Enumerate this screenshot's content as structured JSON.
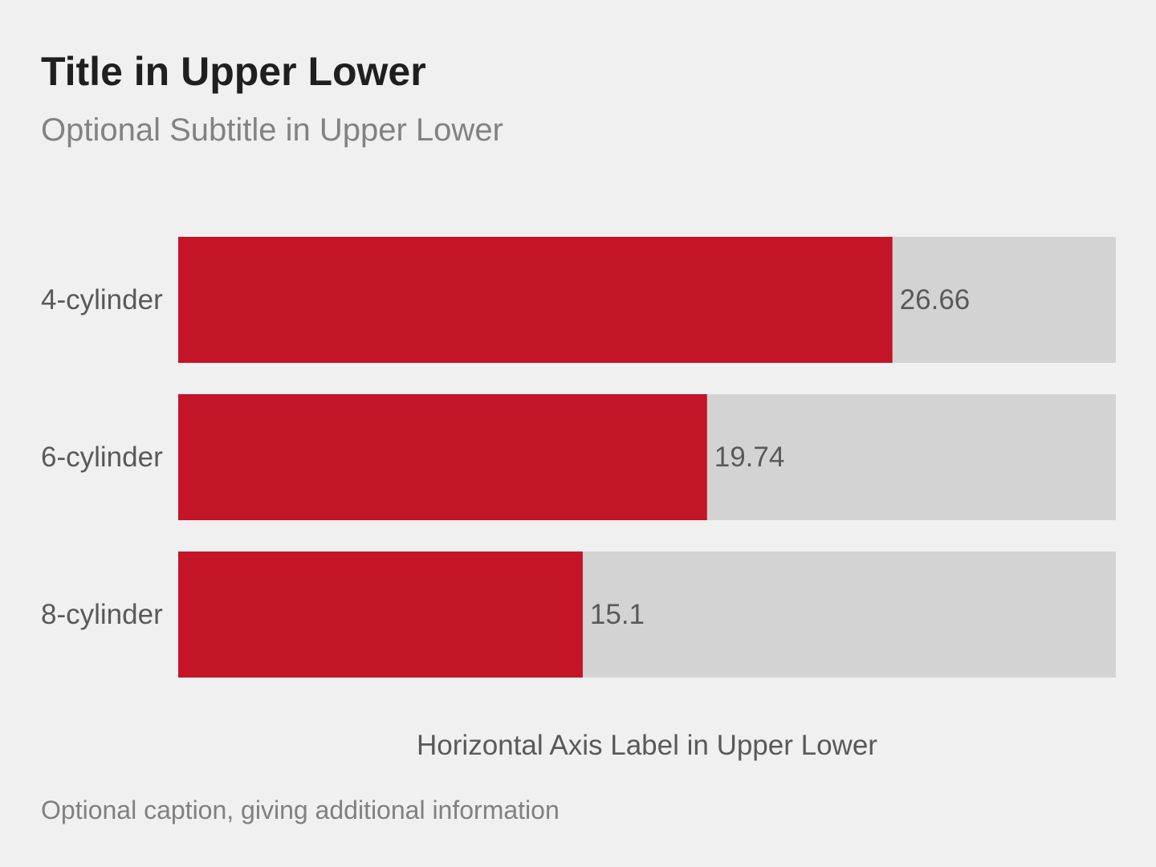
{
  "chart": {
    "title": "Title in Upper Lower",
    "subtitle": "Optional Subtitle in Upper Lower",
    "caption": "Optional caption, giving additional information"
  },
  "chart_data": {
    "type": "bar",
    "orientation": "horizontal",
    "title": "Title in Upper Lower",
    "subtitle": "Optional Subtitle in Upper Lower",
    "categories": [
      "4-cylinder",
      "6-cylinder",
      "8-cylinder"
    ],
    "values": [
      26.66,
      19.74,
      15.1
    ],
    "value_labels": [
      "26.66",
      "19.74",
      "15.1"
    ],
    "xlabel": "Horizontal Axis Label in Upper Lower",
    "ylabel": "",
    "xlim": [
      0,
      35
    ],
    "grid": false,
    "colors": {
      "bar": "#c41428",
      "track": "#d3d3d3",
      "background": "#f0f0f0"
    }
  }
}
